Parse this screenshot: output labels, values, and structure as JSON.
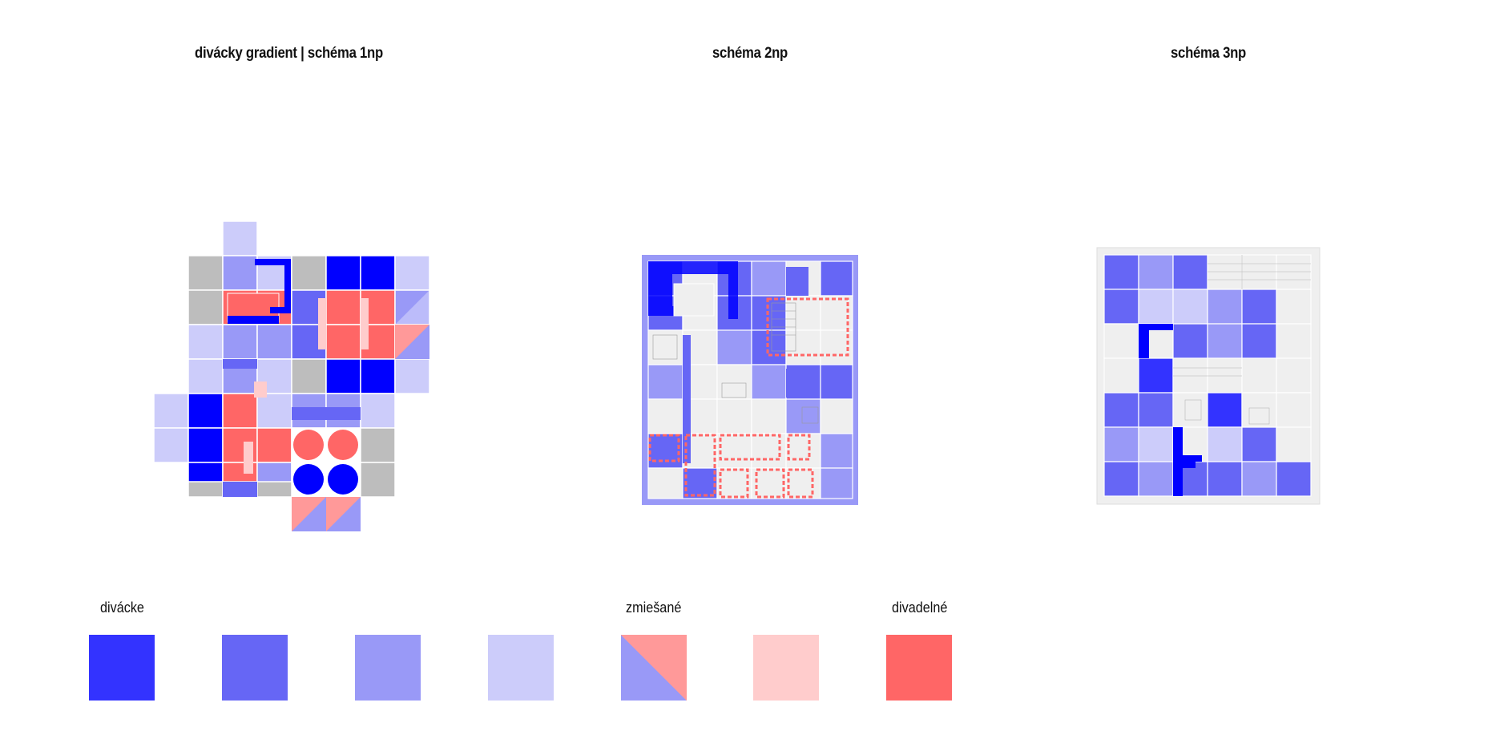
{
  "titles": {
    "plan1": "divácky gradient  | schéma 1np",
    "plan2": "schéma 2np",
    "plan3": "schéma 3np"
  },
  "legend": {
    "label_left": "divácke",
    "label_middle": "zmiešané",
    "label_right": "divadelné",
    "swatches": [
      {
        "name": "divacke-1",
        "color": "#3333ff"
      },
      {
        "name": "divacke-2",
        "color": "#6666f5"
      },
      {
        "name": "divacke-3",
        "color": "#9999f7"
      },
      {
        "name": "divacke-4",
        "color": "#ccccfa"
      },
      {
        "name": "zmiesane",
        "color_a": "#9999f7",
        "color_b": "#ff9999"
      },
      {
        "name": "divadelne-2",
        "color": "#ffcccc"
      },
      {
        "name": "divadelne-1",
        "color": "#ff6666"
      }
    ]
  },
  "colors": {
    "blue_full": "#0000ff",
    "blue_1": "#3333ff",
    "blue_2": "#6666f5",
    "blue_3": "#9999f7",
    "blue_4": "#ccccfa",
    "red": "#ff6666",
    "red_light": "#ff9999",
    "grey": "#bdbdbd",
    "light_grey": "#efefef"
  }
}
